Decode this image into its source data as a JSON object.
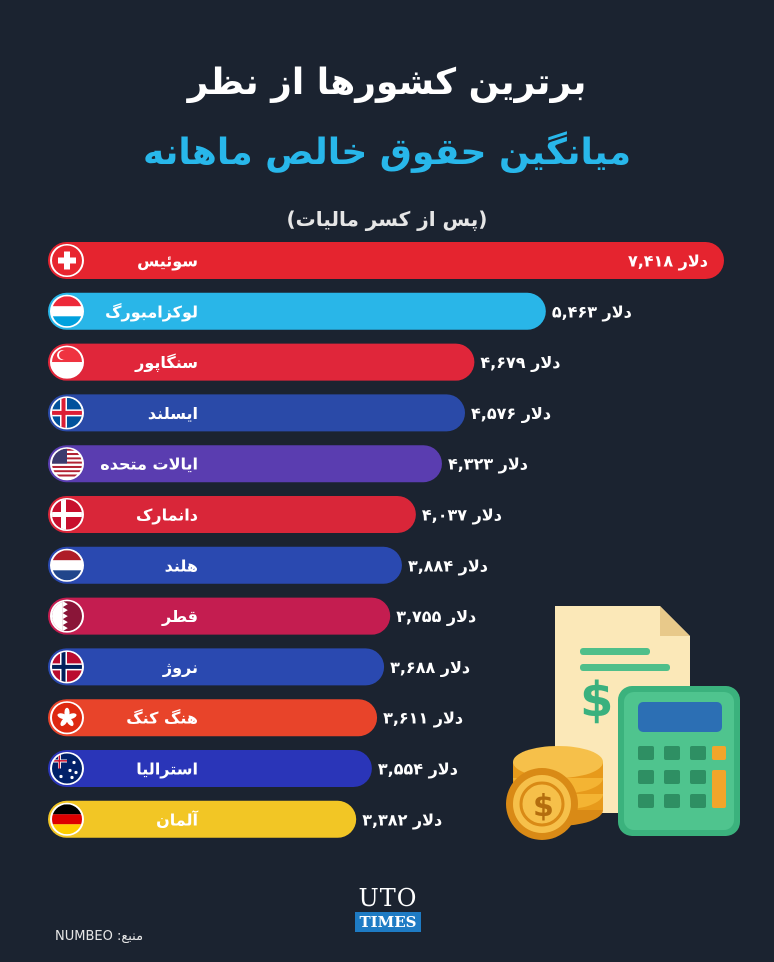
{
  "header": {
    "title_line1": "برترین کشورها از نظر",
    "title_line2": "میانگین حقوق خالص ماهانه",
    "title_line3": "(پس از کسر مالیات)"
  },
  "footer": {
    "source_label": "منبع: NUMBEO",
    "logo_top": "UTO",
    "logo_bottom": "TIMES"
  },
  "illustration": {
    "name": "calculator-coins-invoice"
  },
  "chart_data": {
    "type": "bar",
    "orientation": "horizontal",
    "unit": "دلار",
    "xlim": [
      0,
      7418
    ],
    "categories": [
      "سوئیس",
      "لوکزامبورگ",
      "سنگاپور",
      "ایسلند",
      "ایالات متحده",
      "دانمارک",
      "هلند",
      "قطر",
      "نروژ",
      "هنگ کنگ",
      "استرالیا",
      "آلمان"
    ],
    "values": [
      7418,
      5463,
      4679,
      4576,
      4323,
      4037,
      3884,
      3755,
      3688,
      3611,
      3554,
      3382
    ],
    "value_labels": [
      "۷,۴۱۸ دلار",
      "۵,۴۶۳ دلار",
      "۴,۶۷۹ دلار",
      "۴,۵۷۶ دلار",
      "۴,۳۲۳ دلار",
      "۴,۰۳۷ دلار",
      "۳,۸۸۴ دلار",
      "۳,۷۵۵ دلار",
      "۳,۶۸۸ دلار",
      "۳,۶۱۱ دلار",
      "۳,۵۵۴ دلار",
      "۳,۳۸۲ دلار"
    ],
    "flags": [
      "switzerland",
      "luxembourg",
      "singapore",
      "iceland",
      "united-states",
      "denmark",
      "netherlands",
      "qatar",
      "norway",
      "hong-kong",
      "australia",
      "germany"
    ],
    "colors": [
      "#e5242f",
      "#29b6e8",
      "#e0263a",
      "#2a4aa8",
      "#5a3db0",
      "#d92639",
      "#2a49b0",
      "#c41d50",
      "#2a49b0",
      "#e8442a",
      "#2a35b8",
      "#f2c625"
    ],
    "value_label_position": "inside-end for first bar, outside-end for others"
  }
}
